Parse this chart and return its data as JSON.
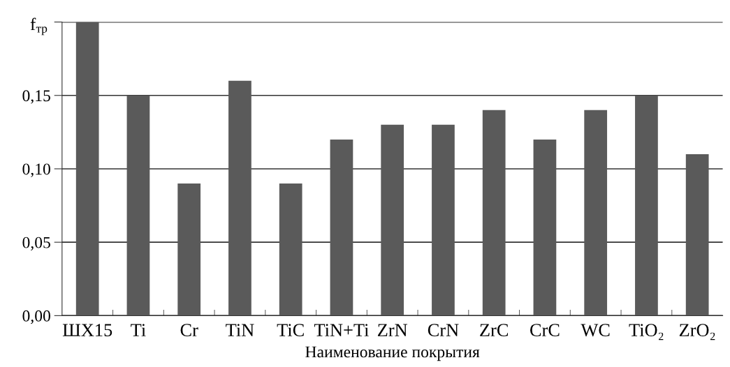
{
  "chart_data": {
    "type": "bar",
    "xlabel": "Наименование покрытия",
    "ylabel": "f$_{тр}$",
    "categories": [
      "ШХ15",
      "Ti",
      "Cr",
      "TiN",
      "TiC",
      "TiN+Ti",
      "ZrN",
      "CrN",
      "ZrC",
      "CrC",
      "WC",
      "TiO₂",
      "ZrO₂"
    ],
    "values": [
      0.2,
      0.15,
      0.09,
      0.16,
      0.09,
      0.12,
      0.13,
      0.13,
      0.14,
      0.12,
      0.14,
      0.15,
      0.11
    ],
    "color": "#5a5a5a",
    "ylim": [
      0,
      0.2
    ],
    "yticks": [
      {
        "value": 0,
        "label": "0,00"
      },
      {
        "value": 0.05,
        "label": "0,05"
      },
      {
        "value": 0.1,
        "label": "0,10"
      },
      {
        "value": 0.15,
        "label": "0,15"
      },
      {
        "value": 0.2,
        "label": null
      }
    ],
    "grid": "y"
  }
}
